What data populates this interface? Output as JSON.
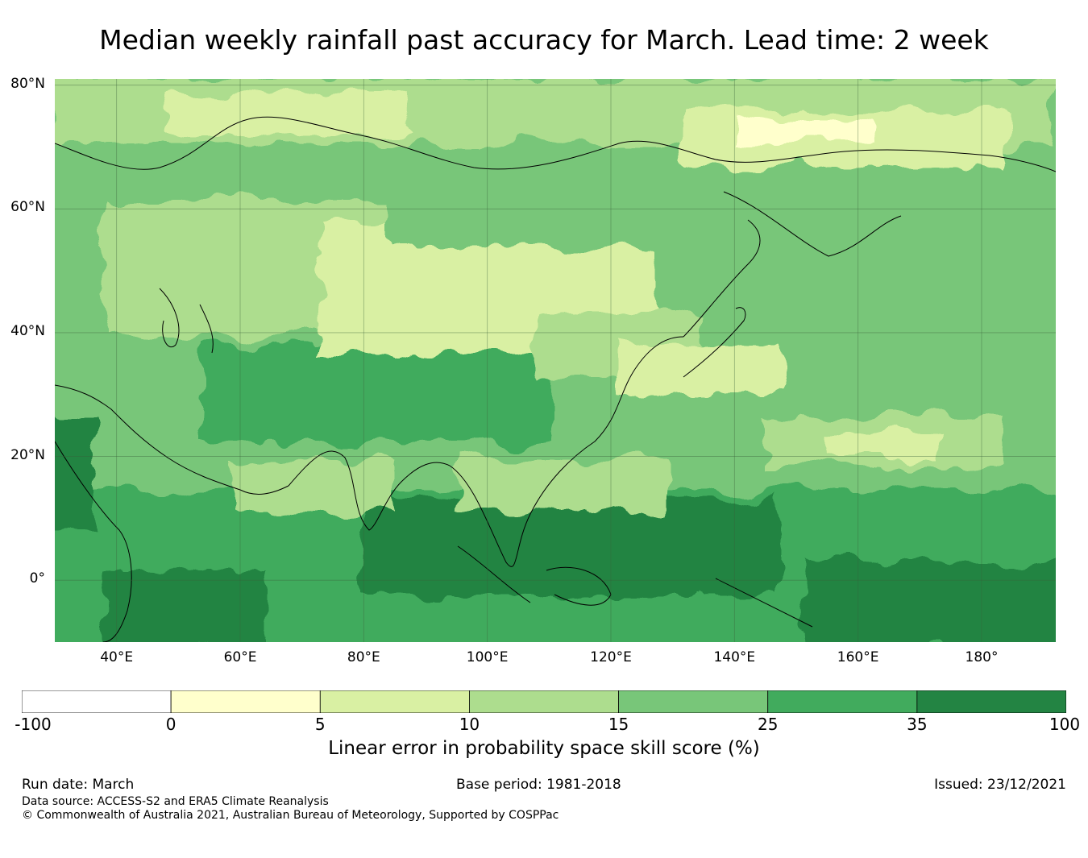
{
  "title": "Median weekly rainfall past accuracy for March. Lead time: 2 week",
  "map": {
    "lat_labels": [
      "80°N",
      "60°N",
      "40°N",
      "20°N",
      "0°"
    ],
    "lon_labels": [
      "40°E",
      "60°E",
      "80°E",
      "100°E",
      "120°E",
      "140°E",
      "160°E",
      "180°"
    ],
    "lat_range": [
      -10,
      81
    ],
    "lon_range": [
      30,
      192
    ],
    "gridlines": true
  },
  "colorbar": {
    "ticks": [
      "-100",
      "0",
      "5",
      "10",
      "15",
      "25",
      "35",
      "100"
    ],
    "colors": [
      "#ffffff",
      "#ffffcc",
      "#d9f0a3",
      "#addd8e",
      "#78c679",
      "#41ab5d",
      "#238443"
    ],
    "label": "Linear error in probability space skill score (%)"
  },
  "footer": {
    "run_date": "Run date: March",
    "base_period": "Base period: 1981-2018",
    "issued": "Issued: 23/12/2021",
    "data_source": "Data source: ACCESS-S2 and ERA5 Climate Reanalysis",
    "copyright": "© Commonwealth of Australia 2021, Australian Bureau of Meteorology, Supported by COSPPac"
  }
}
